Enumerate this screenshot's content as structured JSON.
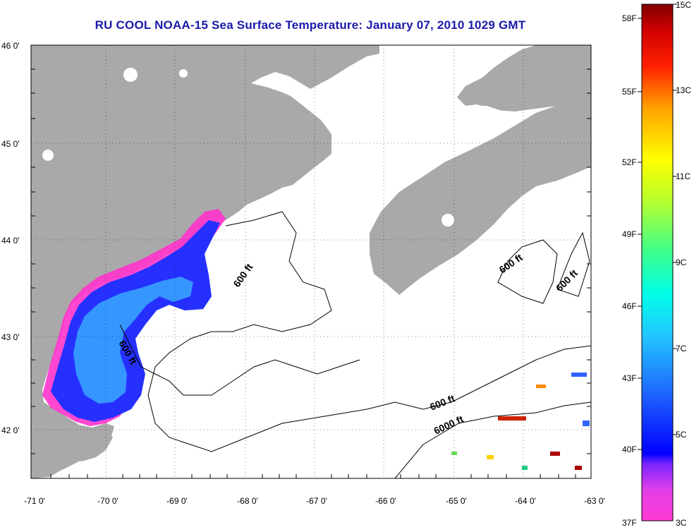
{
  "title": "RU COOL  NOAA-15  Sea Surface Temperature:  January 07, 2010 1029 GMT",
  "lat_labels": [
    "46 0'",
    "45 0'",
    "44 0'",
    "43 0'",
    "42 0'"
  ],
  "lon_labels": [
    "-71 0'",
    "-70 0'",
    "-69 0'",
    "-68 0'",
    "-67 0'",
    "-66 0'",
    "-65 0'",
    "-64 0'",
    "-63 0'"
  ],
  "contour_labels": [
    "600 ft",
    "600 ft",
    "600 ft",
    "600 ft",
    "600 ft",
    "6000 ft"
  ],
  "colorbar": {
    "fahrenheit": [
      "58F",
      "55F",
      "52F",
      "49F",
      "46F",
      "43F",
      "40F",
      "37F"
    ],
    "celsius": [
      "15C",
      "13C",
      "11C",
      "9C",
      "7C",
      "5C",
      "3C"
    ]
  },
  "colors": {
    "land": "#a9a9a9",
    "title": "#1a1aaa",
    "cold": "#ff33cc",
    "cool": "#1e2bff",
    "mid": "#2aa0ff"
  }
}
